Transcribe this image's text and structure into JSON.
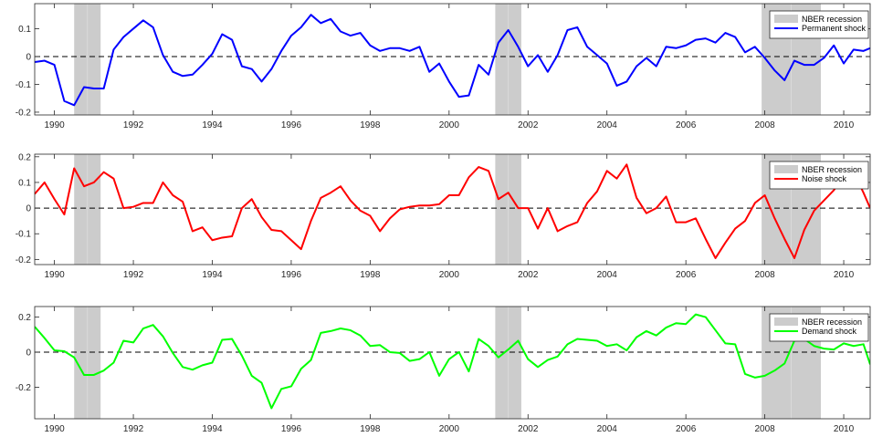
{
  "chart_data": [
    {
      "type": "line",
      "title": "",
      "xlabel": "",
      "ylabel": "",
      "xlim": [
        1989.5,
        2010.67
      ],
      "ylim": [
        -0.21,
        0.19
      ],
      "yticks": [
        -0.2,
        -0.1,
        0,
        0.1
      ],
      "ytick_labels": [
        "-0.2",
        "-0.1",
        "0",
        "0.1"
      ],
      "xticks": [
        1990,
        1992,
        1994,
        1996,
        1998,
        2000,
        2002,
        2004,
        2006,
        2008,
        2010
      ],
      "xtick_labels": [
        "1990",
        "1992",
        "1994",
        "1996",
        "1998",
        "2000",
        "2002",
        "2004",
        "2006",
        "2008",
        "2010"
      ],
      "grid": false,
      "zero_line": "dashed",
      "legend_position": "top-right",
      "recession_color": "#cccccc",
      "recessions": [
        [
          1990.5,
          1991.17
        ],
        [
          2001.17,
          2001.83
        ],
        [
          2007.92,
          2009.42
        ]
      ],
      "recession_label": "NBER recession",
      "series": [
        {
          "name": "Permanent shock",
          "color": "#0000ff",
          "x": [
            1989.5,
            1989.75,
            1990.0,
            1990.25,
            1990.5,
            1990.75,
            1991.0,
            1991.25,
            1991.5,
            1991.75,
            1992.0,
            1992.25,
            1992.5,
            1992.75,
            1993.0,
            1993.25,
            1993.5,
            1993.75,
            1994.0,
            1994.25,
            1994.5,
            1994.75,
            1995.0,
            1995.25,
            1995.5,
            1995.75,
            1996.0,
            1996.25,
            1996.5,
            1996.75,
            1997.0,
            1997.25,
            1997.5,
            1997.75,
            1998.0,
            1998.25,
            1998.5,
            1998.75,
            1999.0,
            1999.25,
            1999.5,
            1999.75,
            2000.0,
            2000.25,
            2000.5,
            2000.75,
            2001.0,
            2001.25,
            2001.5,
            2001.75,
            2002.0,
            2002.25,
            2002.5,
            2002.75,
            2003.0,
            2003.25,
            2003.5,
            2003.75,
            2004.0,
            2004.25,
            2004.5,
            2004.75,
            2005.0,
            2005.25,
            2005.5,
            2005.75,
            2006.0,
            2006.25,
            2006.5,
            2006.75,
            2007.0,
            2007.25,
            2007.5,
            2007.75,
            2008.0,
            2008.25,
            2008.5,
            2008.75,
            2009.0,
            2009.25,
            2009.5,
            2009.75,
            2010.0,
            2010.25,
            2010.5,
            2010.67
          ],
          "y": [
            -0.02,
            -0.015,
            -0.03,
            -0.16,
            -0.175,
            -0.11,
            -0.115,
            -0.115,
            0.025,
            0.07,
            0.1,
            0.13,
            0.105,
            0.005,
            -0.055,
            -0.07,
            -0.065,
            -0.03,
            0.01,
            0.08,
            0.06,
            -0.035,
            -0.045,
            -0.09,
            -0.045,
            0.02,
            0.075,
            0.105,
            0.15,
            0.12,
            0.135,
            0.09,
            0.075,
            0.085,
            0.04,
            0.02,
            0.03,
            0.03,
            0.02,
            0.035,
            -0.055,
            -0.025,
            -0.09,
            -0.145,
            -0.14,
            -0.03,
            -0.065,
            0.05,
            0.095,
            0.035,
            -0.035,
            0.005,
            -0.055,
            0.005,
            0.095,
            0.105,
            0.035,
            0.005,
            -0.025,
            -0.105,
            -0.09,
            -0.035,
            -0.005,
            -0.035,
            0.035,
            0.03,
            0.04,
            0.06,
            0.065,
            0.05,
            0.085,
            0.07,
            0.015,
            0.035,
            -0.005,
            -0.05,
            -0.085,
            -0.015,
            -0.03,
            -0.03,
            -0.005,
            0.04,
            -0.025,
            0.025,
            0.02,
            0.03
          ]
        }
      ]
    },
    {
      "type": "line",
      "title": "",
      "xlabel": "",
      "ylabel": "",
      "xlim": [
        1989.5,
        2010.67
      ],
      "ylim": [
        -0.22,
        0.21
      ],
      "yticks": [
        -0.2,
        -0.1,
        0,
        0.1,
        0.2
      ],
      "ytick_labels": [
        "-0.2",
        "-0.1",
        "0",
        "0.1",
        "0.2"
      ],
      "xticks": [
        1990,
        1992,
        1994,
        1996,
        1998,
        2000,
        2002,
        2004,
        2006,
        2008,
        2010
      ],
      "xtick_labels": [
        "1990",
        "1992",
        "1994",
        "1996",
        "1998",
        "2000",
        "2002",
        "2004",
        "2006",
        "2008",
        "2010"
      ],
      "grid": false,
      "zero_line": "dashed",
      "legend_position": "top-right",
      "recession_color": "#cccccc",
      "recessions": [
        [
          1990.5,
          1991.17
        ],
        [
          2001.17,
          2001.83
        ],
        [
          2007.92,
          2009.42
        ]
      ],
      "recession_label": "NBER recession",
      "series": [
        {
          "name": "Noise shock",
          "color": "#ff0000",
          "x": [
            1989.5,
            1989.75,
            1990.0,
            1990.25,
            1990.5,
            1990.75,
            1991.0,
            1991.25,
            1991.5,
            1991.75,
            1992.0,
            1992.25,
            1992.5,
            1992.75,
            1993.0,
            1993.25,
            1993.5,
            1993.75,
            1994.0,
            1994.25,
            1994.5,
            1994.75,
            1995.0,
            1995.25,
            1995.5,
            1995.75,
            1996.0,
            1996.25,
            1996.5,
            1996.75,
            1997.0,
            1997.25,
            1997.5,
            1997.75,
            1998.0,
            1998.25,
            1998.5,
            1998.75,
            1999.0,
            1999.25,
            1999.5,
            1999.75,
            2000.0,
            2000.25,
            2000.5,
            2000.75,
            2001.0,
            2001.25,
            2001.5,
            2001.75,
            2002.0,
            2002.25,
            2002.5,
            2002.75,
            2003.0,
            2003.25,
            2003.5,
            2003.75,
            2004.0,
            2004.25,
            2004.5,
            2004.75,
            2005.0,
            2005.25,
            2005.5,
            2005.75,
            2006.0,
            2006.25,
            2006.5,
            2006.75,
            2007.0,
            2007.25,
            2007.5,
            2007.75,
            2008.0,
            2008.25,
            2008.5,
            2008.75,
            2009.0,
            2009.25,
            2009.5,
            2009.75,
            2010.0,
            2010.25,
            2010.5,
            2010.67
          ],
          "y": [
            0.055,
            0.1,
            0.035,
            -0.025,
            0.155,
            0.085,
            0.1,
            0.14,
            0.115,
            0.0,
            0.005,
            0.02,
            0.02,
            0.1,
            0.05,
            0.025,
            -0.09,
            -0.075,
            -0.125,
            -0.115,
            -0.11,
            0.0,
            0.035,
            -0.035,
            -0.085,
            -0.09,
            -0.125,
            -0.16,
            -0.05,
            0.04,
            0.06,
            0.085,
            0.03,
            -0.01,
            -0.03,
            -0.09,
            -0.04,
            -0.005,
            0.005,
            0.01,
            0.01,
            0.015,
            0.05,
            0.05,
            0.12,
            0.16,
            0.145,
            0.035,
            0.06,
            0.0,
            0.0,
            -0.08,
            0.0,
            -0.09,
            -0.07,
            -0.055,
            0.02,
            0.065,
            0.145,
            0.115,
            0.17,
            0.04,
            -0.02,
            0.0,
            0.045,
            -0.055,
            -0.055,
            -0.04,
            -0.12,
            -0.195,
            -0.135,
            -0.08,
            -0.05,
            0.02,
            0.05,
            -0.04,
            -0.12,
            -0.195,
            -0.085,
            -0.01,
            0.03,
            0.07,
            0.12,
            0.14,
            0.06,
            0.0
          ]
        }
      ]
    },
    {
      "type": "line",
      "title": "",
      "xlabel": "",
      "ylabel": "",
      "xlim": [
        1989.5,
        2010.67
      ],
      "ylim": [
        -0.38,
        0.26
      ],
      "yticks": [
        -0.2,
        0,
        0.2
      ],
      "ytick_labels": [
        "-0.2",
        "0",
        "0.2"
      ],
      "xticks": [
        1990,
        1992,
        1994,
        1996,
        1998,
        2000,
        2002,
        2004,
        2006,
        2008,
        2010
      ],
      "xtick_labels": [
        "1990",
        "1992",
        "1994",
        "1996",
        "1998",
        "2000",
        "2002",
        "2004",
        "2006",
        "2008",
        "2010"
      ],
      "grid": false,
      "zero_line": "dashed",
      "legend_position": "top-right",
      "recession_color": "#cccccc",
      "recessions": [
        [
          1990.5,
          1991.17
        ],
        [
          2001.17,
          2001.83
        ],
        [
          2007.92,
          2009.42
        ]
      ],
      "recession_label": "NBER recession",
      "series": [
        {
          "name": "Demand shock",
          "color": "#00ff00",
          "x": [
            1989.5,
            1989.75,
            1990.0,
            1990.25,
            1990.5,
            1990.75,
            1991.0,
            1991.25,
            1991.5,
            1991.75,
            1992.0,
            1992.25,
            1992.5,
            1992.75,
            1993.0,
            1993.25,
            1993.5,
            1993.75,
            1994.0,
            1994.25,
            1994.5,
            1994.75,
            1995.0,
            1995.25,
            1995.5,
            1995.75,
            1996.0,
            1996.25,
            1996.5,
            1996.75,
            1997.0,
            1997.25,
            1997.5,
            1997.75,
            1998.0,
            1998.25,
            1998.5,
            1998.75,
            1999.0,
            1999.25,
            1999.5,
            1999.75,
            2000.0,
            2000.25,
            2000.5,
            2000.75,
            2001.0,
            2001.25,
            2001.5,
            2001.75,
            2002.0,
            2002.25,
            2002.5,
            2002.75,
            2003.0,
            2003.25,
            2003.5,
            2003.75,
            2004.0,
            2004.25,
            2004.5,
            2004.75,
            2005.0,
            2005.25,
            2005.5,
            2005.75,
            2006.0,
            2006.25,
            2006.5,
            2006.75,
            2007.0,
            2007.25,
            2007.5,
            2007.75,
            2008.0,
            2008.25,
            2008.5,
            2008.75,
            2009.0,
            2009.25,
            2009.5,
            2009.75,
            2010.0,
            2010.25,
            2010.5,
            2010.67
          ],
          "y": [
            0.145,
            0.08,
            0.01,
            0.005,
            -0.03,
            -0.13,
            -0.13,
            -0.105,
            -0.06,
            0.065,
            0.055,
            0.135,
            0.155,
            0.09,
            -0.005,
            -0.085,
            -0.1,
            -0.075,
            -0.06,
            0.07,
            0.075,
            -0.02,
            -0.135,
            -0.175,
            -0.32,
            -0.21,
            -0.195,
            -0.095,
            -0.045,
            0.11,
            0.12,
            0.135,
            0.125,
            0.095,
            0.035,
            0.04,
            0.0,
            -0.005,
            -0.05,
            -0.04,
            0.0,
            -0.135,
            -0.04,
            0.0,
            -0.11,
            0.075,
            0.035,
            -0.03,
            0.015,
            0.065,
            -0.04,
            -0.085,
            -0.045,
            -0.025,
            0.045,
            0.075,
            0.07,
            0.065,
            0.035,
            0.045,
            0.01,
            0.085,
            0.12,
            0.095,
            0.14,
            0.165,
            0.16,
            0.215,
            0.2,
            0.125,
            0.05,
            0.045,
            -0.125,
            -0.145,
            -0.135,
            -0.105,
            -0.065,
            0.065,
            0.075,
            0.035,
            0.02,
            0.015,
            0.05,
            0.035,
            0.045,
            -0.07
          ]
        }
      ]
    }
  ]
}
